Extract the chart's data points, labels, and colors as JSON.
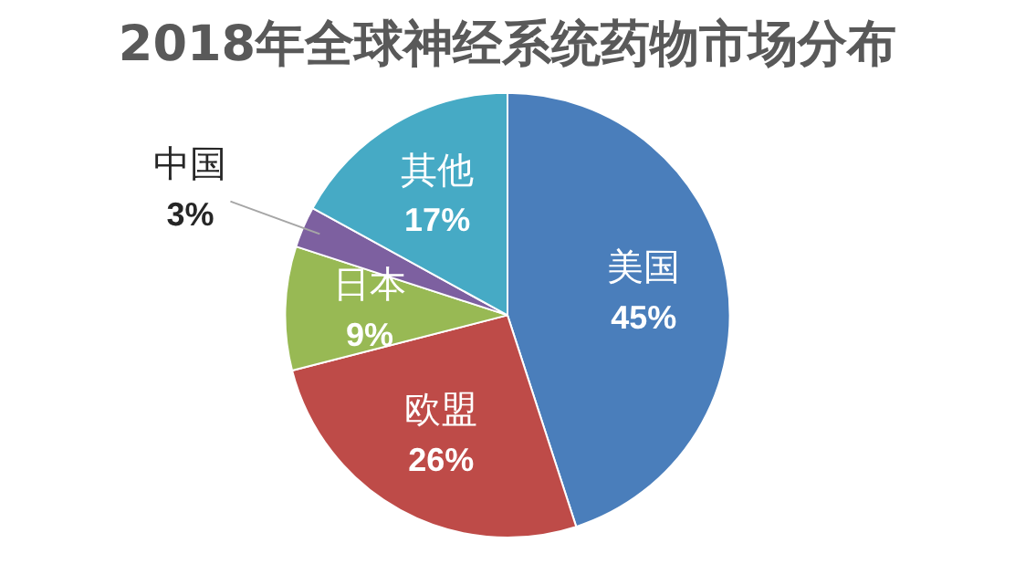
{
  "chart_data": {
    "type": "pie",
    "title": "2018年全球神经系统药物市场分布",
    "categories": [
      "美国",
      "欧盟",
      "日本",
      "中国",
      "其他"
    ],
    "values": [
      45,
      26,
      9,
      3,
      17
    ],
    "colors": [
      "#4a7ebb",
      "#be4b48",
      "#98b954",
      "#7d60a0",
      "#46aac5"
    ],
    "value_labels": [
      "45%",
      "26%",
      "9%",
      "3%",
      "17%"
    ],
    "legend": false
  }
}
